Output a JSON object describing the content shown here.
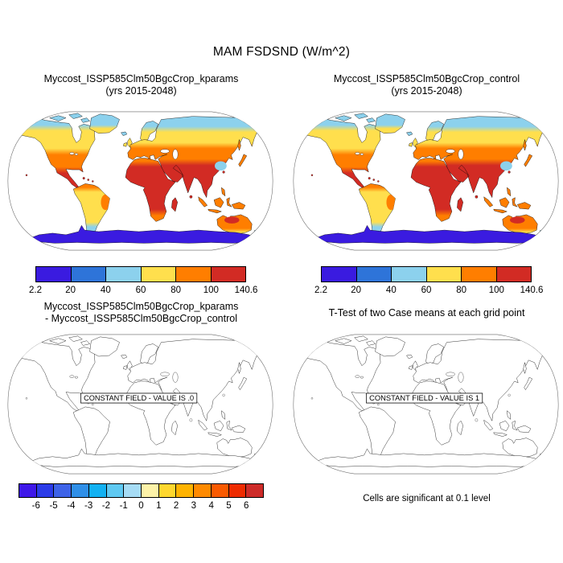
{
  "figure": {
    "title": "MAM FSDSND (W/m^2)",
    "significance_note": "Cells are significant at 0.1 level"
  },
  "panels": {
    "top_left": {
      "title": "Myccost_ISSP585Clm50BgcCrop_kparams",
      "subtitle": "(yrs 2015-2048)"
    },
    "top_right": {
      "title": "Myccost_ISSP585Clm50BgcCrop_control",
      "subtitle": "(yrs 2015-2048)"
    },
    "bottom_left": {
      "title": "Myccost_ISSP585Clm50BgcCrop_kparams",
      "subtitle": "- Myccost_ISSP585Clm50BgcCrop_control",
      "constant_field_label": "CONSTANT FIELD - VALUE IS .0"
    },
    "bottom_right": {
      "title": "T-Test of two Case means at each grid point",
      "constant_field_label": "CONSTANT FIELD - VALUE IS 1"
    }
  },
  "colorbars": {
    "value": {
      "labels": [
        "2.2",
        "20",
        "40",
        "60",
        "80",
        "100",
        "140.6"
      ],
      "colors": [
        "#3A1BE0",
        "#2E74D9",
        "#8CD1ED",
        "#FFDF4D",
        "#FF7E00",
        "#D22B24"
      ]
    },
    "difference": {
      "labels": [
        "-6",
        "-5",
        "-4",
        "-3",
        "-2",
        "-1",
        "0",
        "1",
        "2",
        "3",
        "4",
        "5",
        "6"
      ],
      "colors": [
        "#3E17E8",
        "#2B3BE8",
        "#3E63E8",
        "#2F8FE8",
        "#12B1F2",
        "#5FC9F2",
        "#A6DCF5",
        "#FCF2A8",
        "#FFD72E",
        "#FFB300",
        "#FF8A00",
        "#FA5A00",
        "#EE2B00",
        "#CD2B28"
      ]
    }
  },
  "chart_data": [
    {
      "type": "heatmap",
      "subtype": "filled-contour world map, Robinson projection, land-only",
      "title": "Myccost_ISSP585Clm50BgcCrop_kparams (yrs 2015-2048)",
      "variable": "MAM FSDSND (W/m^2)",
      "contour_levels": [
        2.2,
        20,
        40,
        60,
        80,
        100,
        140.6
      ],
      "palette": [
        "#3A1BE0",
        "#2E74D9",
        "#8CD1ED",
        "#FFDF4D",
        "#FF7E00",
        "#D22B24"
      ],
      "data_min": 2.2,
      "data_max": 140.6,
      "pattern": "100-140 W/m^2 over tropics/subtropics (Africa, Middle East, India, Mexico); 80-100 mid-latitudes (USA, Mediterranean, China, Australia); 60-80 boreal zone, Amazon, southern South America; 40-60 Arctic coasts, SE China; 2.2-20 Antarctica"
    },
    {
      "type": "heatmap",
      "subtype": "filled-contour world map, Robinson projection, land-only",
      "title": "Myccost_ISSP585Clm50BgcCrop_control (yrs 2015-2048)",
      "variable": "MAM FSDSND (W/m^2)",
      "contour_levels": [
        2.2,
        20,
        40,
        60,
        80,
        100,
        140.6
      ],
      "palette": [
        "#3A1BE0",
        "#2E74D9",
        "#8CD1ED",
        "#FFDF4D",
        "#FF7E00",
        "#D22B24"
      ],
      "data_min": 2.2,
      "data_max": 140.6,
      "pattern": "identical distribution to kparams panel"
    },
    {
      "type": "heatmap",
      "subtype": "difference map, Robinson projection, outline only",
      "title": "Myccost_ISSP585Clm50BgcCrop_kparams - Myccost_ISSP585Clm50BgcCrop_control",
      "contour_levels": [
        -6,
        -5,
        -4,
        -3,
        -2,
        -1,
        0,
        1,
        2,
        3,
        4,
        5,
        6
      ],
      "palette": [
        "#3E17E8",
        "#2B3BE8",
        "#3E63E8",
        "#2F8FE8",
        "#12B1F2",
        "#5FC9F2",
        "#A6DCF5",
        "#FCF2A8",
        "#FFD72E",
        "#FFB300",
        "#FF8A00",
        "#FA5A00",
        "#EE2B00",
        "#CD2B28"
      ],
      "constant_value": 0.0,
      "annotation": "CONSTANT FIELD - VALUE IS .0"
    },
    {
      "type": "heatmap",
      "subtype": "t-test significance map, Robinson projection, outline only",
      "title": "T-Test of two Case means at each grid point",
      "constant_value": 1,
      "annotation": "CONSTANT FIELD - VALUE IS 1",
      "note": "Cells are significant at 0.1 level"
    }
  ]
}
